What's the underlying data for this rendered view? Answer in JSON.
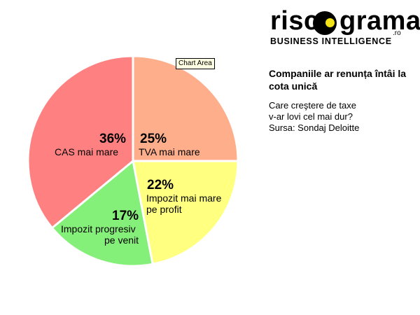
{
  "logo": {
    "word_a": "risc",
    "word_b": "grama",
    "suffix": ".ro",
    "tagline": "BUSINESS INTELLIGENCE",
    "ball_color": "#000000",
    "accent_color": "#f2e317"
  },
  "tooltip": "Chart Area",
  "chart_data": {
    "type": "pie",
    "title": "Companiile ar renunța întâi la cota unică",
    "subtitle_lines": [
      "Care creştere de taxe",
      "v-ar lovi cel mai dur?",
      "Sursa: Sondaj Deloitte"
    ],
    "slices": [
      {
        "pct_label": "25%",
        "label_lines": [
          "TVA mai mare"
        ],
        "value": 25,
        "color": "#ffae8c"
      },
      {
        "pct_label": "22%",
        "label_lines": [
          "Impozit mai mare",
          "pe profit"
        ],
        "value": 22,
        "color": "#ffff80"
      },
      {
        "pct_label": "17%",
        "label_lines": [
          "Impozit progresiv",
          "pe venit"
        ],
        "value": 17,
        "color": "#85f079"
      },
      {
        "pct_label": "36%",
        "label_lines": [
          "CAS mai mare"
        ],
        "value": 36,
        "color": "#ff8080"
      }
    ],
    "start_angle_deg": 0,
    "direction": "clockwise",
    "legend": "none"
  }
}
